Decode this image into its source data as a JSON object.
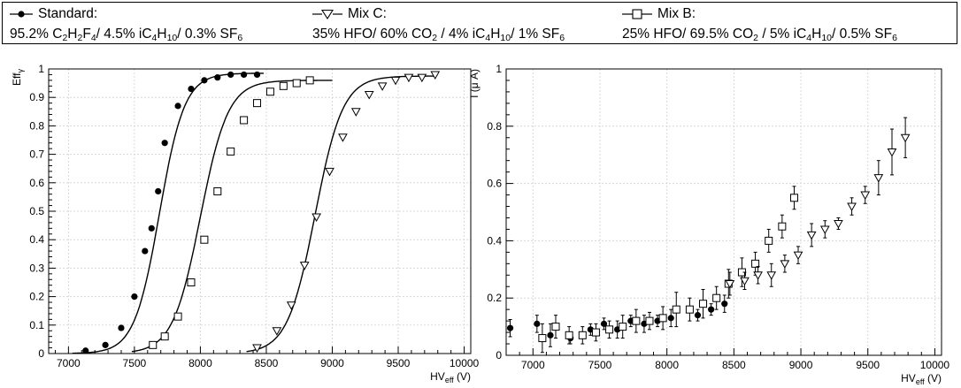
{
  "legend": {
    "standard": {
      "marker": "filled-circle",
      "name": "Standard:",
      "composition": [
        {
          "t": "95.2% C"
        },
        {
          "s": "2"
        },
        {
          "t": "H"
        },
        {
          "s": "2"
        },
        {
          "t": "F"
        },
        {
          "s": "4"
        },
        {
          "t": "/ 4.5% iC"
        },
        {
          "s": "4"
        },
        {
          "t": "H"
        },
        {
          "s": "10"
        },
        {
          "t": "/ 0.3% SF"
        },
        {
          "s": "6"
        }
      ]
    },
    "mix_c": {
      "marker": "open-triangle-down",
      "name": "Mix C:",
      "composition": [
        {
          "t": "35% HFO/ 60% CO"
        },
        {
          "s": "2"
        },
        {
          "t": " / 4% iC"
        },
        {
          "s": "4"
        },
        {
          "t": "H"
        },
        {
          "s": "10"
        },
        {
          "t": "/ 1% SF"
        },
        {
          "s": "6"
        }
      ]
    },
    "mix_b": {
      "marker": "open-square",
      "name": "Mix B:",
      "composition": [
        {
          "t": "25% HFO/ 69.5% CO"
        },
        {
          "s": "2"
        },
        {
          "t": " / 5% iC"
        },
        {
          "s": "4"
        },
        {
          "t": "H"
        },
        {
          "s": "10"
        },
        {
          "t": "/ 0.5% SF"
        },
        {
          "s": "6"
        }
      ]
    }
  },
  "chart_data": [
    {
      "type": "scatter",
      "xlabel": "HV",
      "xlabel_sub": "eff",
      "xlabel_unit": " (V)",
      "ylabel": "Eff",
      "ylabel_sub": "γ",
      "xlim": [
        6850,
        10050
      ],
      "ylim": [
        0,
        1
      ],
      "xticks": [
        7000,
        7500,
        8000,
        8500,
        9000,
        9500,
        10000
      ],
      "yticks": [
        0,
        0.1,
        0.2,
        0.3,
        0.4,
        0.5,
        0.6,
        0.7,
        0.8,
        0.9,
        1
      ],
      "ytick_labels": [
        "0",
        "0.1",
        "0.2",
        "0.3",
        "0.4",
        "0.5",
        "0.6",
        "0.7",
        "0.8",
        "0.9",
        "1"
      ],
      "grid": true,
      "series": [
        {
          "marker": "filled-circle",
          "fit": {
            "plateau": 0.985,
            "hv50": 7690,
            "slope": 95,
            "xmin": 7030,
            "xmax": 8480
          },
          "x": [
            7130,
            7280,
            7400,
            7500,
            7580,
            7630,
            7680,
            7730,
            7830,
            7930,
            8030,
            8130,
            8230,
            8330,
            8430
          ],
          "y": [
            0.01,
            0.03,
            0.09,
            0.2,
            0.36,
            0.44,
            0.57,
            0.74,
            0.87,
            0.93,
            0.96,
            0.97,
            0.98,
            0.98,
            0.98
          ]
        },
        {
          "marker": "open-square",
          "fit": {
            "plateau": 0.96,
            "hv50": 8000,
            "slope": 105,
            "xmin": 7480,
            "xmax": 9000
          },
          "x": [
            7640,
            7730,
            7830,
            7930,
            8030,
            8130,
            8230,
            8330,
            8430,
            8530,
            8630,
            8730,
            8830
          ],
          "y": [
            0.03,
            0.06,
            0.13,
            0.25,
            0.4,
            0.57,
            0.71,
            0.82,
            0.88,
            0.92,
            0.94,
            0.95,
            0.96
          ]
        },
        {
          "marker": "open-triangle-down",
          "fit": {
            "plateau": 0.975,
            "hv50": 8870,
            "slope": 105,
            "xmin": 8350,
            "xmax": 9790
          },
          "x": [
            8430,
            8580,
            8690,
            8790,
            8880,
            8980,
            9080,
            9180,
            9280,
            9380,
            9480,
            9580,
            9680,
            9780
          ],
          "y": [
            0.02,
            0.08,
            0.17,
            0.31,
            0.48,
            0.64,
            0.76,
            0.85,
            0.91,
            0.94,
            0.96,
            0.97,
            0.97,
            0.98
          ]
        }
      ]
    },
    {
      "type": "scatter",
      "xlabel": "HV",
      "xlabel_sub": "eff",
      "xlabel_unit": " (V)",
      "ylabel": "I (μ A)",
      "xlim": [
        6800,
        10050
      ],
      "ylim": [
        0,
        1
      ],
      "xticks": [
        7000,
        7500,
        8000,
        8500,
        9000,
        9500,
        10000
      ],
      "yticks": [
        0,
        0.2,
        0.4,
        0.6,
        0.8,
        1
      ],
      "ytick_labels": [
        "0",
        "0.2",
        "0.4",
        "0.6",
        "0.8",
        "1"
      ],
      "grid": true,
      "series": [
        {
          "marker": "filled-circle",
          "x": [
            6830,
            7030,
            7130,
            7280,
            7430,
            7530,
            7630,
            7730,
            7830,
            7930,
            8030,
            8230,
            8330,
            8430
          ],
          "y": [
            0.095,
            0.11,
            0.07,
            0.06,
            0.09,
            0.11,
            0.09,
            0.12,
            0.11,
            0.12,
            0.13,
            0.14,
            0.16,
            0.18
          ],
          "err": [
            0.03,
            0.03,
            0.04,
            0.02,
            0.02,
            0.02,
            0.03,
            0.02,
            0.03,
            0.02,
            0.03,
            0.02,
            0.02,
            0.03
          ]
        },
        {
          "marker": "open-square",
          "x": [
            7070,
            7170,
            7270,
            7370,
            7470,
            7570,
            7670,
            7770,
            7870,
            7970,
            8070,
            8170,
            8270,
            8370,
            8460,
            8560,
            8660,
            8760,
            8860,
            8950
          ],
          "y": [
            0.06,
            0.1,
            0.07,
            0.07,
            0.08,
            0.09,
            0.1,
            0.12,
            0.12,
            0.13,
            0.16,
            0.16,
            0.18,
            0.2,
            0.25,
            0.29,
            0.32,
            0.4,
            0.45,
            0.55
          ],
          "err": [
            0.05,
            0.04,
            0.03,
            0.03,
            0.03,
            0.03,
            0.04,
            0.04,
            0.03,
            0.04,
            0.06,
            0.04,
            0.05,
            0.04,
            0.05,
            0.05,
            0.04,
            0.04,
            0.04,
            0.04
          ]
        },
        {
          "marker": "open-triangle-down",
          "x": [
            8470,
            8580,
            8680,
            8780,
            8880,
            8980,
            9080,
            9180,
            9280,
            9380,
            9480,
            9580,
            9680,
            9780
          ],
          "y": [
            0.25,
            0.26,
            0.28,
            0.28,
            0.32,
            0.35,
            0.42,
            0.44,
            0.46,
            0.52,
            0.56,
            0.62,
            0.71,
            0.76
          ],
          "err": [
            0.04,
            0.03,
            0.03,
            0.04,
            0.03,
            0.03,
            0.04,
            0.03,
            0.02,
            0.03,
            0.03,
            0.06,
            0.08,
            0.07
          ]
        }
      ]
    }
  ]
}
